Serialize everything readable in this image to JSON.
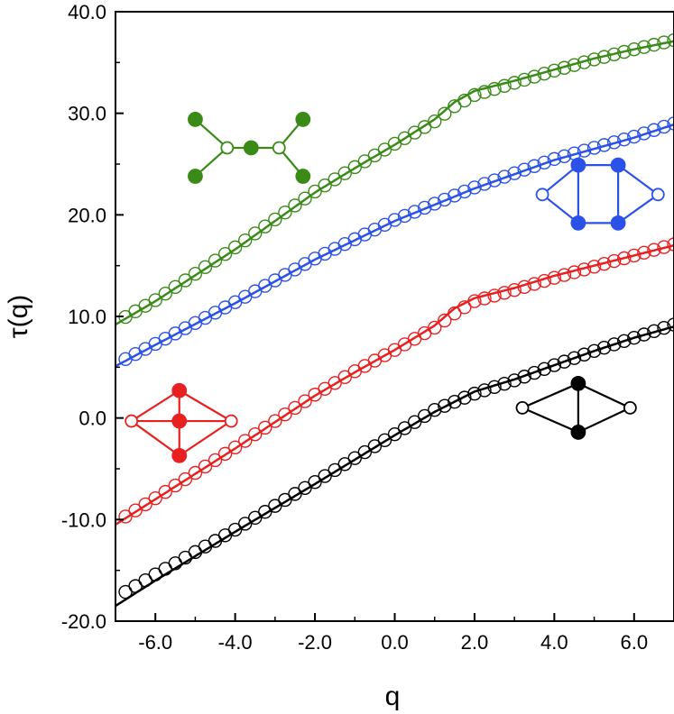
{
  "chart_data": {
    "type": "line",
    "title": "",
    "xlabel": "q",
    "ylabel": "τ(q)",
    "xlim": [
      -7,
      7
    ],
    "ylim": [
      -20,
      40
    ],
    "xticks": [
      -6,
      -4,
      -2,
      0,
      2,
      4,
      6
    ],
    "xtick_labels": [
      "-6.0",
      "-4.0",
      "-2.0",
      "0.0",
      "2.0",
      "4.0",
      "6.0"
    ],
    "yticks": [
      -20,
      -10,
      0,
      10,
      20,
      30,
      40
    ],
    "ytick_labels": [
      "-20.0",
      "-10.0",
      "0.0",
      "10.0",
      "20.0",
      "30.0",
      "40.0"
    ],
    "grid": false,
    "legend": "none",
    "marker_x": {
      "start": -6.75,
      "step": 0.25,
      "count": 56
    },
    "series": [
      {
        "name": "green graph",
        "color": "#3a8a18",
        "line_points": [
          [
            -7,
            9.2
          ],
          [
            -6,
            11.5
          ],
          [
            -4,
            16.6
          ],
          [
            -2,
            22.2
          ],
          [
            -1,
            24.6
          ],
          [
            0,
            26.9
          ],
          [
            1,
            29.4
          ],
          [
            1.5,
            31.1
          ],
          [
            2,
            32.2
          ],
          [
            3,
            33.2
          ],
          [
            4,
            34.3
          ],
          [
            5,
            35.4
          ],
          [
            6,
            36.3
          ],
          [
            7,
            37.1
          ]
        ],
        "marker_points": [
          [
            -7,
            9.4
          ],
          [
            -6,
            11.6
          ],
          [
            -4,
            16.8
          ],
          [
            -2,
            22.3
          ],
          [
            -1,
            24.7
          ],
          [
            0,
            27.0
          ],
          [
            1,
            29.2
          ],
          [
            1.5,
            30.7
          ],
          [
            2,
            31.8
          ],
          [
            3,
            33.0
          ],
          [
            4,
            34.2
          ],
          [
            5,
            35.3
          ],
          [
            6,
            36.3
          ],
          [
            7,
            37.2
          ]
        ]
      },
      {
        "name": "blue graph",
        "color": "#2a52e8",
        "line_points": [
          [
            -7,
            5.1
          ],
          [
            -6,
            7.2
          ],
          [
            -4,
            11.3
          ],
          [
            -2,
            15.6
          ],
          [
            0,
            19.4
          ],
          [
            2,
            22.6
          ],
          [
            4,
            25.4
          ],
          [
            6,
            27.6
          ],
          [
            7,
            28.9
          ]
        ],
        "marker_points": [
          [
            -7,
            5.3
          ],
          [
            -6,
            7.3
          ],
          [
            -4,
            11.4
          ],
          [
            -2,
            15.7
          ],
          [
            0,
            19.5
          ],
          [
            2,
            22.7
          ],
          [
            4,
            25.5
          ],
          [
            6,
            27.7
          ],
          [
            7,
            29.0
          ]
        ]
      },
      {
        "name": "red graph",
        "color": "#e82020",
        "line_points": [
          [
            -7,
            -10.5
          ],
          [
            -6,
            -8.0
          ],
          [
            -4,
            -3.0
          ],
          [
            -2,
            2.2
          ],
          [
            -1,
            4.5
          ],
          [
            0,
            6.7
          ],
          [
            1,
            9.1
          ],
          [
            1.5,
            10.8
          ],
          [
            2,
            11.8
          ],
          [
            3,
            12.8
          ],
          [
            4,
            14.0
          ],
          [
            5,
            15.0
          ],
          [
            6,
            16.0
          ],
          [
            7,
            17.0
          ]
        ],
        "marker_points": [
          [
            -7,
            -10.3
          ],
          [
            -6,
            -7.9
          ],
          [
            -4,
            -2.9
          ],
          [
            -2,
            2.3
          ],
          [
            -1,
            4.6
          ],
          [
            0,
            6.7
          ],
          [
            1,
            8.9
          ],
          [
            1.5,
            10.3
          ],
          [
            2,
            11.5
          ],
          [
            3,
            12.6
          ],
          [
            4,
            13.8
          ],
          [
            5,
            14.9
          ],
          [
            6,
            16.0
          ],
          [
            7,
            17.1
          ]
        ]
      },
      {
        "name": "black graph",
        "color": "#000000",
        "line_points": [
          [
            -7,
            -18.5
          ],
          [
            -6,
            -16.0
          ],
          [
            -4,
            -11.2
          ],
          [
            -2,
            -6.5
          ],
          [
            0,
            -1.7
          ],
          [
            1,
            0.6
          ],
          [
            2,
            2.6
          ],
          [
            3,
            3.8
          ],
          [
            4,
            5.2
          ],
          [
            5,
            6.6
          ],
          [
            6,
            7.9
          ],
          [
            7,
            9.0
          ]
        ],
        "marker_points": [
          [
            -7,
            -17.7
          ],
          [
            -6,
            -15.4
          ],
          [
            -4,
            -11.0
          ],
          [
            -2,
            -6.3
          ],
          [
            0,
            -1.6
          ],
          [
            1,
            0.8
          ],
          [
            2,
            2.4
          ],
          [
            3,
            3.7
          ],
          [
            4,
            5.2
          ],
          [
            5,
            6.6
          ],
          [
            6,
            7.9
          ],
          [
            7,
            9.2
          ]
        ]
      }
    ],
    "insets": [
      {
        "name": "green-graph-inset",
        "color": "#3a8a18",
        "nodes": [
          [
            -5,
            29.4,
            "f"
          ],
          [
            -5,
            23.8,
            "f"
          ],
          [
            -3.6,
            26.6,
            "f"
          ],
          [
            -2.3,
            29.4,
            "f"
          ],
          [
            -2.3,
            23.8,
            "f"
          ],
          [
            -4.2,
            26.6,
            "o"
          ],
          [
            -2.9,
            26.6,
            "o"
          ]
        ],
        "edges": [
          [
            0,
            5
          ],
          [
            1,
            5
          ],
          [
            5,
            2
          ],
          [
            2,
            6
          ],
          [
            6,
            3
          ],
          [
            6,
            4
          ]
        ]
      },
      {
        "name": "blue-graph-inset",
        "color": "#2a52e8",
        "nodes": [
          [
            4.6,
            24.9,
            "f"
          ],
          [
            5.6,
            24.9,
            "f"
          ],
          [
            4.6,
            19.2,
            "f"
          ],
          [
            5.6,
            19.2,
            "f"
          ],
          [
            3.7,
            22.0,
            "o"
          ],
          [
            6.6,
            22.0,
            "o"
          ]
        ],
        "edges": [
          [
            0,
            1
          ],
          [
            2,
            3
          ],
          [
            0,
            2
          ],
          [
            1,
            3
          ],
          [
            4,
            0
          ],
          [
            4,
            2
          ],
          [
            1,
            5
          ],
          [
            3,
            5
          ]
        ]
      },
      {
        "name": "red-graph-inset",
        "color": "#e82020",
        "nodes": [
          [
            -5.4,
            2.7,
            "f"
          ],
          [
            -5.4,
            -0.3,
            "f"
          ],
          [
            -5.4,
            -3.7,
            "f"
          ],
          [
            -6.6,
            -0.3,
            "o"
          ],
          [
            -4.1,
            -0.3,
            "o"
          ]
        ],
        "edges": [
          [
            3,
            0
          ],
          [
            0,
            4
          ],
          [
            4,
            2
          ],
          [
            2,
            3
          ],
          [
            3,
            1
          ],
          [
            1,
            4
          ],
          [
            0,
            1
          ],
          [
            1,
            2
          ]
        ]
      },
      {
        "name": "black-graph-inset",
        "color": "#000000",
        "nodes": [
          [
            4.6,
            3.4,
            "f"
          ],
          [
            4.6,
            -1.4,
            "f"
          ],
          [
            3.2,
            1.0,
            "o"
          ],
          [
            5.9,
            1.0,
            "o"
          ]
        ],
        "edges": [
          [
            2,
            0
          ],
          [
            0,
            3
          ],
          [
            3,
            1
          ],
          [
            1,
            2
          ],
          [
            0,
            1
          ]
        ]
      }
    ]
  }
}
